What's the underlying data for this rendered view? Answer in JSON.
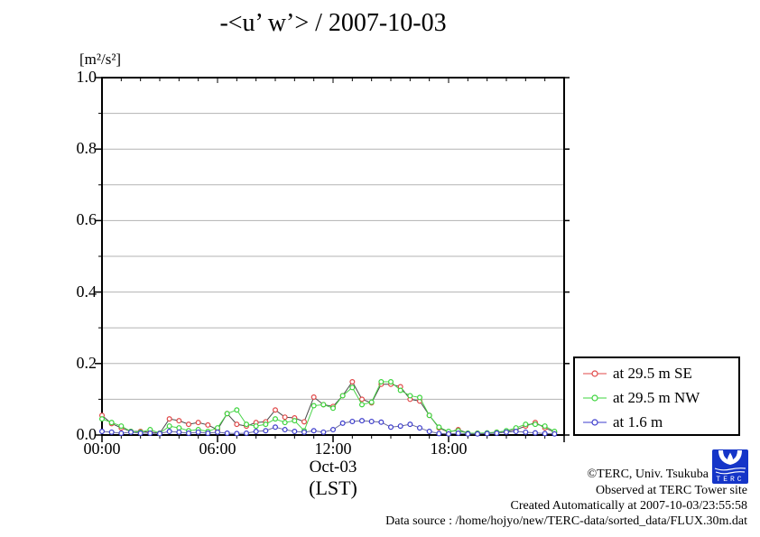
{
  "title": "-<u’ w’> / 2007-10-03",
  "chart_data": {
    "type": "line",
    "title": "-<u’ w’> / 2007-10-03",
    "y_unit_label": "[m²/s²]",
    "x_date_label": "Oct-03",
    "x_unit_label": "(LST)",
    "ylim": [
      0.0,
      1.0
    ],
    "xlim_hours": [
      0,
      24
    ],
    "grid": "horizontal light-grey lines every 0.1",
    "legend_position": "outside right-bottom",
    "y_major_ticks": [
      "0.0",
      "0.2",
      "0.4",
      "0.6",
      "0.8",
      "1.0"
    ],
    "x_major_ticks": [
      "00:00",
      "06:00",
      "12:00",
      "18:00"
    ],
    "x_hours": [
      0,
      0.5,
      1,
      1.5,
      2,
      2.5,
      3,
      3.5,
      4,
      4.5,
      5,
      5.5,
      6,
      6.5,
      7,
      7.5,
      8,
      8.5,
      9,
      9.5,
      10,
      10.5,
      11,
      11.5,
      12,
      12.5,
      13,
      13.5,
      14,
      14.5,
      15,
      15.5,
      16,
      16.5,
      17,
      17.5,
      18,
      18.5,
      19,
      19.5,
      20,
      20.5,
      21,
      21.5,
      22,
      22.5,
      23,
      23.5
    ],
    "series": [
      {
        "name": "at 29.5 m SE",
        "marker_color": "#e04848",
        "line_color": "#4a4a4a",
        "values": [
          0.055,
          0.032,
          0.02,
          0.01,
          0.01,
          0.008,
          0.005,
          0.045,
          0.04,
          0.03,
          0.035,
          0.028,
          0.015,
          0.06,
          0.03,
          0.025,
          0.035,
          0.037,
          0.07,
          0.05,
          0.048,
          0.037,
          0.106,
          0.085,
          0.08,
          0.11,
          0.149,
          0.1,
          0.09,
          0.142,
          0.142,
          0.135,
          0.1,
          0.095,
          0.055,
          0.02,
          0.008,
          0.015,
          0.005,
          0.005,
          0.005,
          0.008,
          0.01,
          0.015,
          0.025,
          0.035,
          0.02,
          0.008
        ]
      },
      {
        "name": "at 29.5 m NW",
        "marker_color": "#3cd43c",
        "line_color": "#4ad44a",
        "values": [
          0.045,
          0.035,
          0.025,
          0.01,
          0.008,
          0.015,
          0.005,
          0.025,
          0.02,
          0.012,
          0.015,
          0.01,
          0.02,
          0.06,
          0.07,
          0.03,
          0.025,
          0.03,
          0.045,
          0.035,
          0.04,
          0.012,
          0.082,
          0.085,
          0.075,
          0.11,
          0.133,
          0.085,
          0.092,
          0.149,
          0.149,
          0.125,
          0.11,
          0.105,
          0.055,
          0.022,
          0.01,
          0.012,
          0.005,
          0.005,
          0.006,
          0.008,
          0.012,
          0.02,
          0.03,
          0.03,
          0.025,
          0.01
        ]
      },
      {
        "name": "at 1.6 m",
        "marker_color": "#3c3ccc",
        "line_color": "#6b6b9b",
        "values": [
          0.01,
          0.008,
          0.005,
          0.008,
          0.005,
          0.005,
          0.004,
          0.01,
          0.008,
          0.005,
          0.008,
          0.005,
          0.008,
          0.005,
          0.004,
          0.005,
          0.01,
          0.012,
          0.022,
          0.015,
          0.01,
          0.008,
          0.012,
          0.008,
          0.015,
          0.033,
          0.038,
          0.04,
          0.038,
          0.036,
          0.022,
          0.025,
          0.03,
          0.02,
          0.01,
          0.004,
          0.003,
          0.005,
          0.003,
          0.003,
          0.004,
          0.005,
          0.008,
          0.01,
          0.008,
          0.006,
          0.004,
          0.003
        ]
      }
    ]
  },
  "footer": {
    "copyright": "©TERC, Univ. Tsukuba",
    "observed": "Observed at TERC Tower site",
    "created": "Created Automatically at 2007-10-03/23:55:58",
    "datasource": "Data source : /home/hojyo/new/TERC-data/sorted_data/FLUX.30m.dat",
    "logo_text": "TERC",
    "logo_color": "#1535c8"
  }
}
